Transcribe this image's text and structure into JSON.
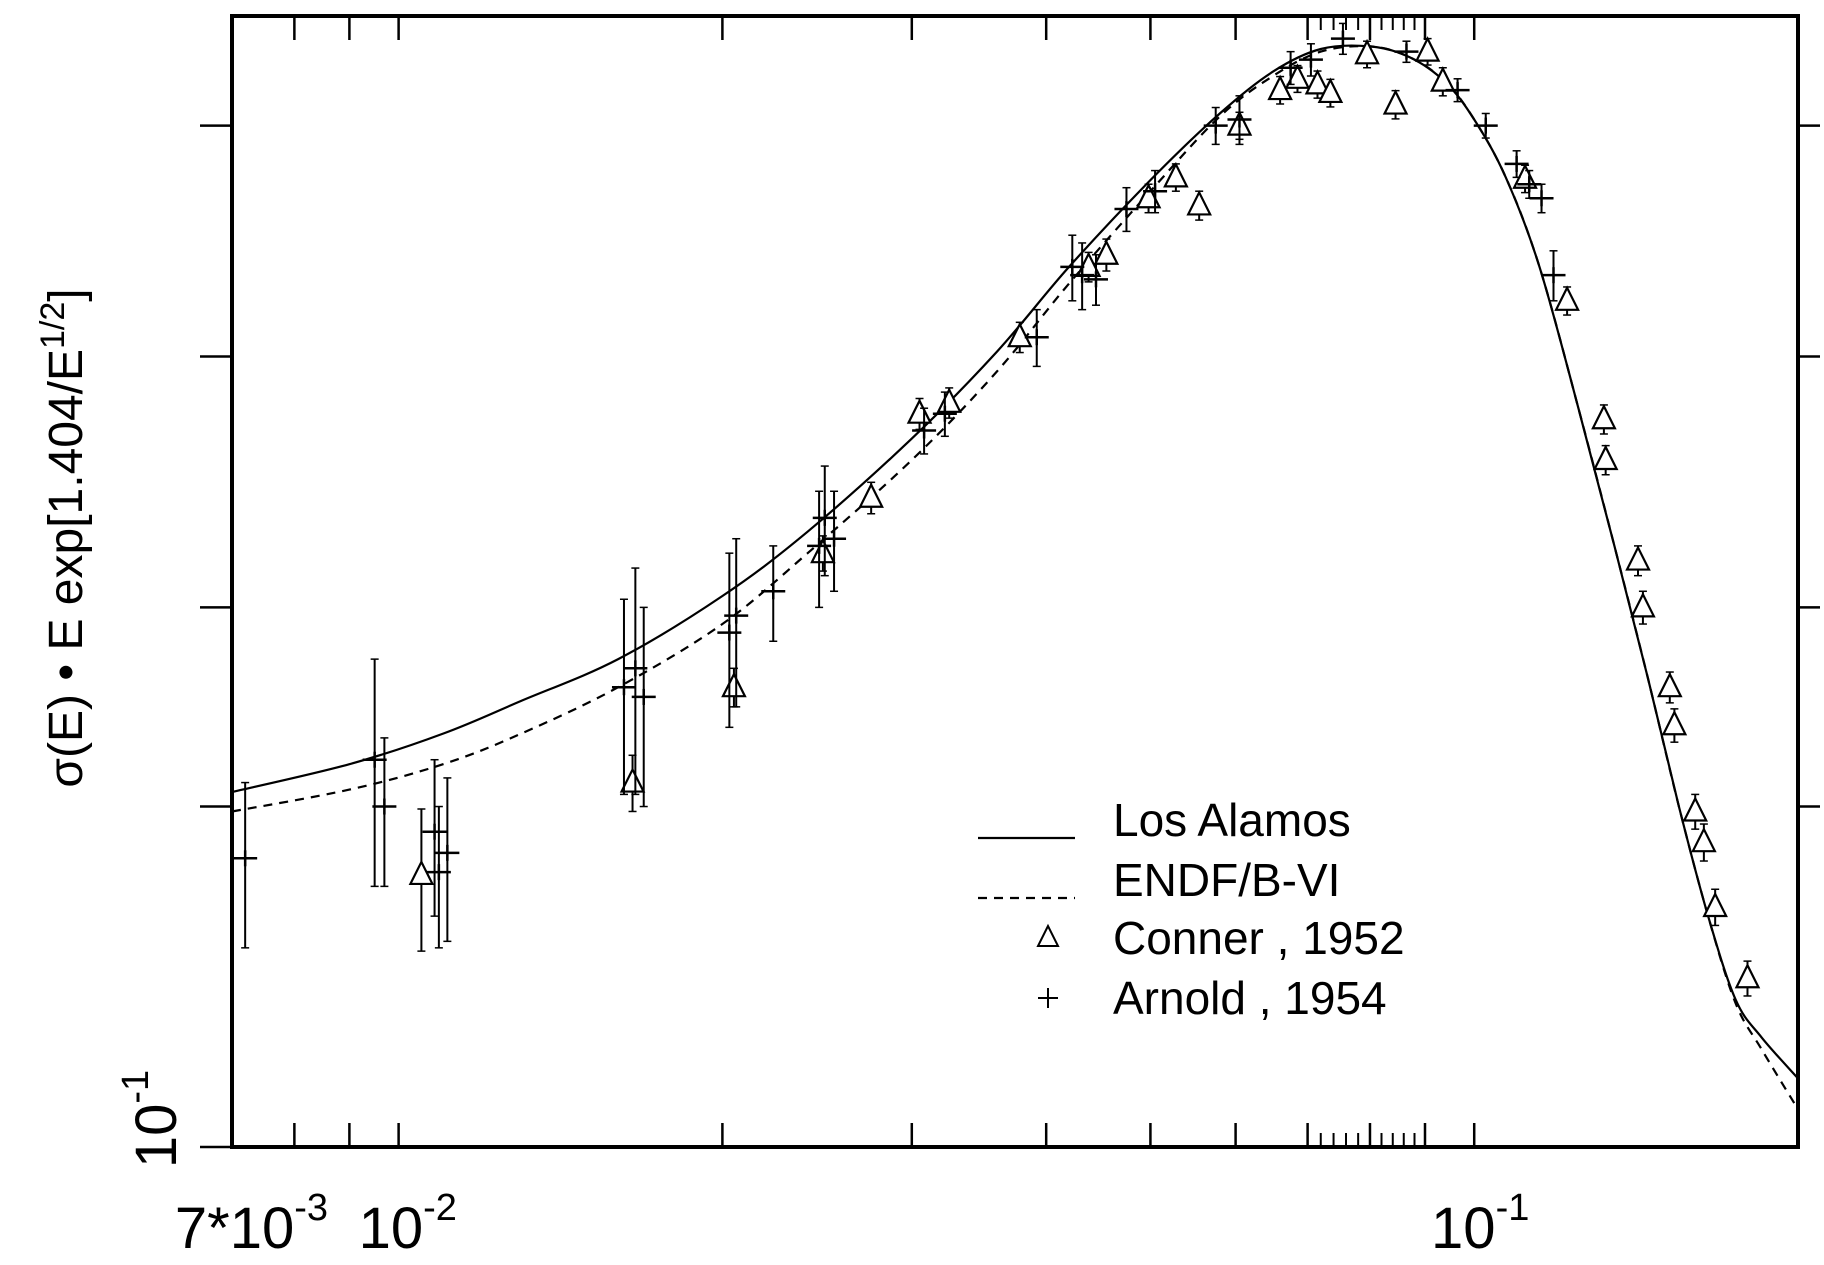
{
  "chart_data": {
    "type": "line",
    "title": "",
    "xlabel": "",
    "ylabel": {
      "main": "σ(E) • E exp[1.404/E",
      "sup": "1/2",
      "close": "]"
    },
    "x_scale": "log",
    "y_scale": "log",
    "xlim": [
      0.007,
      0.2
    ],
    "ylim": [
      0.1,
      1.0
    ],
    "x_tick_labels": [
      {
        "value": 0.007,
        "mantissa": "7*10",
        "exp": "-3"
      },
      {
        "value": 0.01,
        "mantissa": "10",
        "exp": "-2"
      },
      {
        "value": 0.1,
        "mantissa": "10",
        "exp": "-1"
      }
    ],
    "y_tick_labels": [
      {
        "value": 0.1,
        "mantissa": "10",
        "exp": "-1"
      }
    ],
    "x_major_ticks": [
      0.007,
      0.008,
      0.009,
      0.01,
      0.02,
      0.03,
      0.04,
      0.05,
      0.06,
      0.07,
      0.08,
      0.09,
      0.1,
      0.2
    ],
    "x_minor_ticks": [
      0.072,
      0.074,
      0.076,
      0.078,
      0.082,
      0.084,
      0.086,
      0.088
    ],
    "y_major_ticks": [
      0.2,
      0.3,
      0.5,
      0.8
    ],
    "grid": false,
    "legend_position": "bottom-right",
    "legend": [
      {
        "name": "Los Alamos",
        "style": "solid"
      },
      {
        "name": "ENDF/B-VI",
        "style": "dashed"
      },
      {
        "name": "Conner , 1952",
        "style": "triangle"
      },
      {
        "name": "Arnold , 1954",
        "style": "plus"
      }
    ],
    "series": [
      {
        "name": "Los Alamos",
        "style": "solid",
        "x": [
          0.007,
          0.009,
          0.011,
          0.013,
          0.016,
          0.02,
          0.024,
          0.03,
          0.036,
          0.042,
          0.05,
          0.058,
          0.065,
          0.072,
          0.08,
          0.087,
          0.094,
          0.1,
          0.107,
          0.115,
          0.125,
          0.135,
          0.145,
          0.155,
          0.165,
          0.175,
          0.185,
          0.2
        ],
        "y": [
          0.206,
          0.218,
          0.232,
          0.248,
          0.27,
          0.307,
          0.35,
          0.423,
          0.505,
          0.6,
          0.716,
          0.82,
          0.893,
          0.935,
          0.94,
          0.92,
          0.874,
          0.81,
          0.72,
          0.6,
          0.45,
          0.34,
          0.26,
          0.2,
          0.16,
          0.135,
          0.125,
          0.115
        ]
      },
      {
        "name": "ENDF/B-VI",
        "style": "dashed",
        "x": [
          0.007,
          0.009,
          0.011,
          0.013,
          0.016,
          0.02,
          0.024,
          0.03,
          0.036,
          0.042,
          0.05,
          0.058,
          0.065,
          0.072,
          0.08,
          0.087,
          0.094,
          0.1,
          0.107,
          0.115,
          0.125,
          0.135,
          0.145,
          0.155,
          0.165,
          0.175,
          0.185,
          0.2
        ],
        "y": [
          0.198,
          0.207,
          0.218,
          0.232,
          0.255,
          0.29,
          0.335,
          0.405,
          0.485,
          0.58,
          0.7,
          0.815,
          0.885,
          0.93,
          0.94,
          0.92,
          0.875,
          0.81,
          0.72,
          0.6,
          0.45,
          0.34,
          0.26,
          0.2,
          0.16,
          0.134,
          0.122,
          0.108
        ]
      },
      {
        "name": "Conner , 1952",
        "marker": "triangle",
        "points": [
          {
            "x": 0.0105,
            "y": 0.174,
            "err": 0.025
          },
          {
            "x": 0.0165,
            "y": 0.21,
            "err": 0.012
          },
          {
            "x": 0.0205,
            "y": 0.255,
            "err": 0.01
          },
          {
            "x": 0.0248,
            "y": 0.335,
            "err": 0.012
          },
          {
            "x": 0.0275,
            "y": 0.375,
            "err": 0.012
          },
          {
            "x": 0.0305,
            "y": 0.445,
            "err": 0.014
          },
          {
            "x": 0.0325,
            "y": 0.455,
            "err": 0.014
          },
          {
            "x": 0.0378,
            "y": 0.52,
            "err": 0.016
          },
          {
            "x": 0.0438,
            "y": 0.6,
            "err": 0.018
          },
          {
            "x": 0.0455,
            "y": 0.615,
            "err": 0.02
          },
          {
            "x": 0.0498,
            "y": 0.69,
            "err": 0.02
          },
          {
            "x": 0.0528,
            "y": 0.72,
            "err": 0.02
          },
          {
            "x": 0.0555,
            "y": 0.68,
            "err": 0.02
          },
          {
            "x": 0.0605,
            "y": 0.8,
            "err": 0.022
          },
          {
            "x": 0.066,
            "y": 0.86,
            "err": 0.024
          },
          {
            "x": 0.0685,
            "y": 0.88,
            "err": 0.024
          },
          {
            "x": 0.0715,
            "y": 0.87,
            "err": 0.024
          },
          {
            "x": 0.0735,
            "y": 0.855,
            "err": 0.024
          },
          {
            "x": 0.0795,
            "y": 0.925,
            "err": 0.025
          },
          {
            "x": 0.0845,
            "y": 0.835,
            "err": 0.024
          },
          {
            "x": 0.0905,
            "y": 0.93,
            "err": 0.025
          },
          {
            "x": 0.0935,
            "y": 0.875,
            "err": 0.025
          },
          {
            "x": 0.1115,
            "y": 0.718,
            "err": 0.02
          },
          {
            "x": 0.122,
            "y": 0.56,
            "err": 0.016
          },
          {
            "x": 0.132,
            "y": 0.44,
            "err": 0.013
          },
          {
            "x": 0.1325,
            "y": 0.405,
            "err": 0.012
          },
          {
            "x": 0.142,
            "y": 0.33,
            "err": 0.01
          },
          {
            "x": 0.1435,
            "y": 0.3,
            "err": 0.01
          },
          {
            "x": 0.152,
            "y": 0.255,
            "err": 0.008
          },
          {
            "x": 0.1535,
            "y": 0.236,
            "err": 0.008
          },
          {
            "x": 0.1605,
            "y": 0.198,
            "err": 0.007
          },
          {
            "x": 0.1635,
            "y": 0.186,
            "err": 0.007
          },
          {
            "x": 0.1675,
            "y": 0.163,
            "err": 0.006
          },
          {
            "x": 0.1795,
            "y": 0.141,
            "err": 0.005
          }
        ]
      },
      {
        "name": "Arnold , 1954",
        "marker": "plus",
        "points": [
          {
            "x": 0.0072,
            "y": 0.18,
            "err": 0.03
          },
          {
            "x": 0.0095,
            "y": 0.22,
            "err": 0.05
          },
          {
            "x": 0.0097,
            "y": 0.2,
            "err": 0.03
          },
          {
            "x": 0.0108,
            "y": 0.19,
            "err": 0.03
          },
          {
            "x": 0.0109,
            "y": 0.175,
            "err": 0.025
          },
          {
            "x": 0.0111,
            "y": 0.182,
            "err": 0.03
          },
          {
            "x": 0.0162,
            "y": 0.255,
            "err": 0.05
          },
          {
            "x": 0.0166,
            "y": 0.265,
            "err": 0.06
          },
          {
            "x": 0.0169,
            "y": 0.25,
            "err": 0.05
          },
          {
            "x": 0.0203,
            "y": 0.285,
            "err": 0.05
          },
          {
            "x": 0.0206,
            "y": 0.295,
            "err": 0.05
          },
          {
            "x": 0.0223,
            "y": 0.31,
            "err": 0.03
          },
          {
            "x": 0.0246,
            "y": 0.34,
            "err": 0.04
          },
          {
            "x": 0.0249,
            "y": 0.36,
            "err": 0.04
          },
          {
            "x": 0.0254,
            "y": 0.345,
            "err": 0.035
          },
          {
            "x": 0.0308,
            "y": 0.43,
            "err": 0.02
          },
          {
            "x": 0.0322,
            "y": 0.445,
            "err": 0.02
          },
          {
            "x": 0.0392,
            "y": 0.52,
            "err": 0.03
          },
          {
            "x": 0.0423,
            "y": 0.6,
            "err": 0.04
          },
          {
            "x": 0.0432,
            "y": 0.59,
            "err": 0.04
          },
          {
            "x": 0.0445,
            "y": 0.585,
            "err": 0.03
          },
          {
            "x": 0.0475,
            "y": 0.675,
            "err": 0.03
          },
          {
            "x": 0.0505,
            "y": 0.7,
            "err": 0.03
          },
          {
            "x": 0.0575,
            "y": 0.8,
            "err": 0.03
          },
          {
            "x": 0.0605,
            "y": 0.81,
            "err": 0.04
          },
          {
            "x": 0.0675,
            "y": 0.9,
            "err": 0.03
          },
          {
            "x": 0.0705,
            "y": 0.915,
            "err": 0.03
          },
          {
            "x": 0.0755,
            "y": 0.955,
            "err": 0.03
          },
          {
            "x": 0.0865,
            "y": 0.93,
            "err": 0.02
          },
          {
            "x": 0.0965,
            "y": 0.86,
            "err": 0.02
          },
          {
            "x": 0.1025,
            "y": 0.8,
            "err": 0.02
          },
          {
            "x": 0.1095,
            "y": 0.74,
            "err": 0.02
          },
          {
            "x": 0.1125,
            "y": 0.71,
            "err": 0.02
          },
          {
            "x": 0.1155,
            "y": 0.69,
            "err": 0.02
          },
          {
            "x": 0.1185,
            "y": 0.59,
            "err": 0.03
          }
        ]
      }
    ]
  }
}
